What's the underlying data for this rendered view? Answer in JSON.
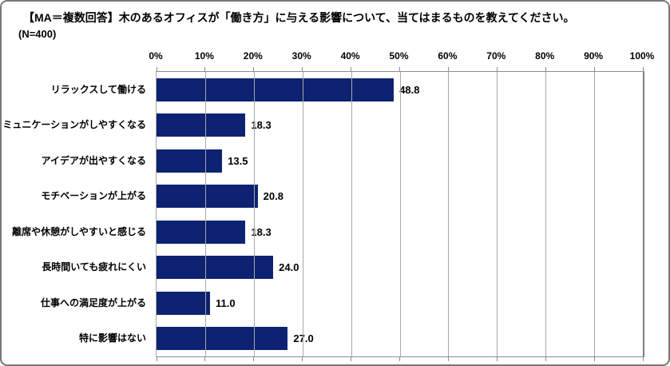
{
  "header": {
    "title": "【MA＝複数回答】木のあるオフィスが「働き方」に与える影響について、当てはまるものを教えてください。",
    "sample_size": "(N=400)"
  },
  "chart_data": {
    "type": "bar",
    "orientation": "horizontal",
    "title": "【MA＝複数回答】木のあるオフィスが「働き方」に与える影響について、当てはまるものを教えてください。",
    "subtitle": "(N=400)",
    "categories": [
      "リラックスして働ける",
      "コミュニケーションがしやすくなる",
      "アイデアが出やすくなる",
      "モチベーションが上がる",
      "離席や休憩がしやすいと感じる",
      "長時間いても疲れにくい",
      "仕事への満足度が上がる",
      "特に影響はない"
    ],
    "values": [
      48.8,
      18.3,
      13.5,
      20.8,
      18.3,
      24.0,
      11.0,
      27.0
    ],
    "value_labels": [
      "48.8",
      "18.3",
      "13.5",
      "20.8",
      "18.3",
      "24.0",
      "11.0",
      "27.0"
    ],
    "x_ticks": [
      "0%",
      "10%",
      "20%",
      "30%",
      "40%",
      "50%",
      "60%",
      "70%",
      "80%",
      "90%",
      "100%"
    ],
    "xlim": [
      0,
      100
    ],
    "grid": true,
    "legend": "none",
    "bar_color": "#0E2272",
    "gridline_color": "#A8A8A8",
    "axis_line_color": "#8E8E8E",
    "text_color": "#000000"
  }
}
